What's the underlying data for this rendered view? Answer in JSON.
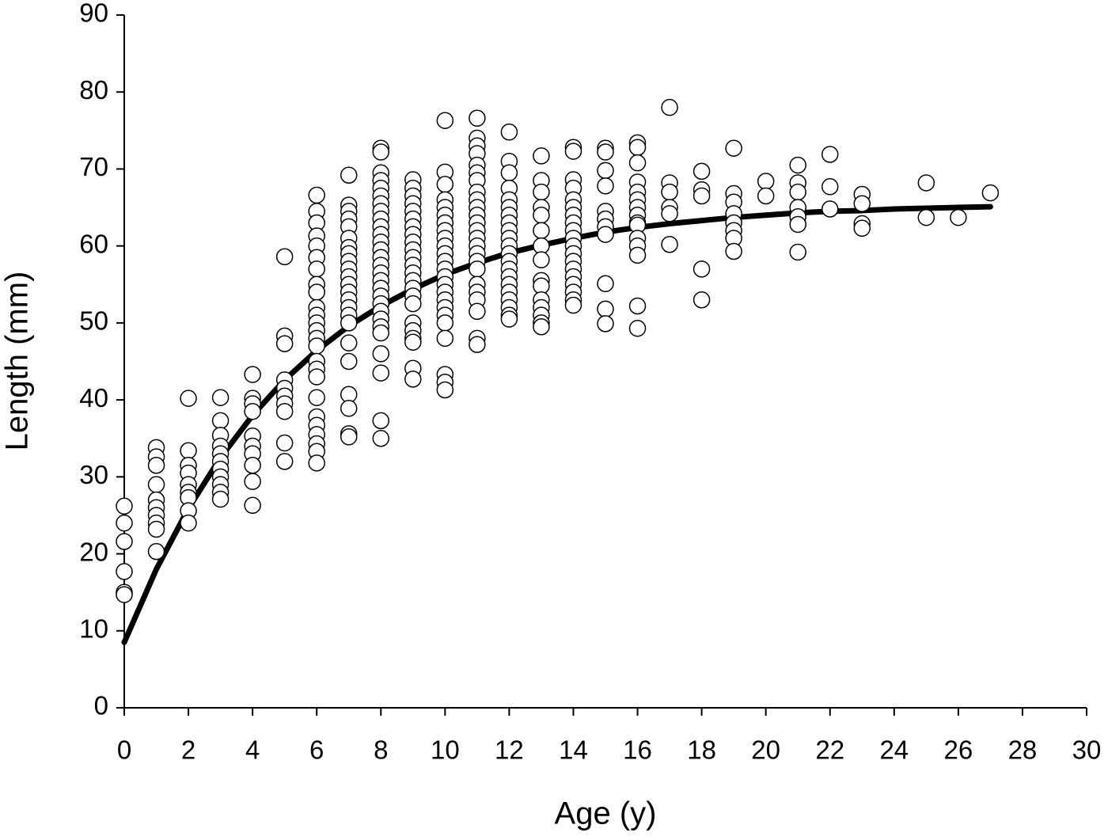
{
  "chart_data": {
    "type": "scatter",
    "x_label": "Age (y)",
    "y_label": "Length (mm)",
    "xlim": [
      0,
      30
    ],
    "ylim": [
      0,
      90
    ],
    "xticks": [
      0,
      2,
      4,
      6,
      8,
      10,
      12,
      14,
      16,
      18,
      20,
      22,
      24,
      26,
      28,
      30
    ],
    "yticks": [
      0,
      10,
      20,
      30,
      40,
      50,
      60,
      70,
      80,
      90
    ],
    "series": [
      {
        "type": "scatter",
        "color": "#ffffff",
        "x": [
          0,
          0,
          0,
          0,
          0,
          0,
          1,
          1,
          1,
          1,
          1,
          1,
          1,
          1,
          1,
          1,
          2,
          2,
          2,
          2,
          2,
          2,
          2,
          2,
          2,
          3,
          3,
          3,
          3,
          3,
          3,
          3,
          3,
          3,
          3,
          3,
          4,
          4,
          4,
          4,
          4,
          4,
          4,
          4,
          4,
          4,
          5,
          5,
          5,
          5,
          5,
          5,
          5,
          5,
          5,
          5,
          6,
          6,
          6,
          6,
          6,
          6,
          6,
          6,
          6,
          6,
          6,
          6,
          6,
          6,
          6,
          6,
          6,
          6,
          6,
          6,
          6,
          6,
          6,
          6,
          6,
          7,
          7,
          7,
          7,
          7,
          7,
          7,
          7,
          7,
          7,
          7,
          7,
          7,
          7,
          7,
          7,
          7,
          7,
          7,
          7,
          7,
          7,
          7,
          8,
          8,
          8,
          8,
          8,
          8,
          8,
          8,
          8,
          8,
          8,
          8,
          8,
          8,
          8,
          8,
          8,
          8,
          8,
          8,
          8,
          8,
          8,
          8,
          8,
          8,
          8,
          8,
          9,
          9,
          9,
          9,
          9,
          9,
          9,
          9,
          9,
          9,
          9,
          9,
          9,
          9,
          9,
          9,
          9,
          9,
          9,
          9,
          9,
          9,
          9,
          10,
          10,
          10,
          10,
          10,
          10,
          10,
          10,
          10,
          10,
          10,
          10,
          10,
          10,
          10,
          10,
          10,
          10,
          10,
          10,
          10,
          10,
          10,
          10,
          11,
          11,
          11,
          11,
          11,
          11,
          11,
          11,
          11,
          11,
          11,
          11,
          11,
          11,
          11,
          11,
          11,
          11,
          11,
          11,
          11,
          11,
          11,
          11,
          12,
          12,
          12,
          12,
          12,
          12,
          12,
          12,
          12,
          12,
          12,
          12,
          12,
          12,
          12,
          12,
          12,
          12,
          12,
          12,
          12,
          13,
          13,
          13,
          13,
          13,
          13,
          13,
          13,
          13,
          13,
          13,
          13,
          13,
          13,
          13,
          14,
          14,
          14,
          14,
          14,
          14,
          14,
          14,
          14,
          14,
          14,
          14,
          14,
          14,
          14,
          14,
          14,
          14,
          14,
          15,
          15,
          15,
          15,
          15,
          15,
          15,
          15,
          15,
          15,
          15,
          16,
          16,
          16,
          16,
          16,
          16,
          16,
          16,
          16,
          16,
          16,
          16,
          16,
          16,
          16,
          17,
          17,
          17,
          17,
          17,
          17,
          18,
          18,
          18,
          18,
          18,
          19,
          19,
          19,
          19,
          19,
          19,
          19,
          19,
          20,
          20,
          21,
          21,
          21,
          21,
          21,
          21,
          21,
          22,
          22,
          22,
          23,
          23,
          23,
          23,
          25,
          25,
          26,
          27
        ],
        "values": [
          26.2,
          24,
          21.6,
          17.7,
          15,
          14.7,
          33.8,
          32.6,
          31.5,
          29,
          27,
          26,
          25,
          24,
          23.2,
          20.3,
          40.2,
          33.4,
          31.5,
          30.5,
          29,
          28,
          27.3,
          25.6,
          24,
          40.3,
          37.3,
          35.4,
          34,
          33,
          32,
          31,
          30,
          29,
          28,
          27.1,
          43.3,
          40.2,
          39.5,
          38.5,
          35.3,
          34,
          33,
          31.5,
          29.4,
          26.3,
          58.6,
          48.3,
          47.3,
          42.6,
          41.5,
          40.5,
          39.5,
          38.5,
          34.4,
          32,
          66.6,
          64.5,
          63,
          61.3,
          60,
          58.5,
          57,
          55,
          54,
          52,
          51,
          50,
          49,
          48,
          47,
          45,
          44,
          43,
          40.3,
          37.8,
          36.7,
          35.5,
          34.3,
          33.3,
          31.8,
          69.2,
          65.3,
          64.5,
          63.5,
          62.5,
          61,
          59.8,
          59,
          58,
          57,
          56,
          55,
          54,
          53,
          52,
          51,
          50,
          47.4,
          45,
          40.7,
          38.9,
          35.6,
          35.2,
          72.7,
          72.2,
          69.5,
          68.5,
          67.5,
          66.5,
          65.5,
          64.5,
          63.5,
          62.5,
          61.5,
          60.5,
          59.5,
          58.5,
          57.5,
          56.5,
          55.5,
          54.5,
          53.5,
          52.5,
          51.5,
          50.5,
          49.5,
          48.7,
          46,
          43.5,
          37.3,
          35,
          68.6,
          67.5,
          66.5,
          65.5,
          64.5,
          63.5,
          62.5,
          61.5,
          60.5,
          59.5,
          58.5,
          57.5,
          56.5,
          55.5,
          54.5,
          53.5,
          52.5,
          50,
          49,
          48,
          47.5,
          44.1,
          42.7,
          76.3,
          69.6,
          68,
          66,
          65,
          64,
          63,
          62,
          61,
          60,
          59,
          58,
          57,
          56,
          55,
          54,
          53,
          52,
          51,
          50,
          48,
          43.3,
          42.3,
          41.3,
          76.6,
          74,
          73,
          72,
          70.5,
          69.5,
          68.5,
          67,
          66,
          65,
          64,
          63,
          62,
          61,
          60,
          59,
          58,
          57,
          55,
          54,
          53,
          51.5,
          48,
          47.2,
          74.8,
          71,
          69.5,
          67.5,
          66,
          65,
          64,
          63,
          62,
          61,
          60,
          59,
          58,
          57,
          56,
          55,
          54,
          53,
          52,
          51,
          50.5,
          71.7,
          68.5,
          67,
          65,
          64,
          62,
          60,
          58.2,
          55.5,
          54.8,
          53,
          52,
          51,
          50,
          49.5,
          72.8,
          72.3,
          68.6,
          67.5,
          66,
          65,
          64,
          63,
          62,
          61,
          60,
          59,
          58,
          57,
          56,
          55,
          54,
          53,
          52.3,
          72.7,
          72.2,
          69.8,
          67.8,
          64.5,
          63.5,
          62.5,
          61.5,
          55.1,
          51.8,
          49.9,
          73.4,
          72.8,
          70.8,
          68.3,
          67,
          66,
          65,
          64,
          63,
          62.7,
          61,
          60,
          58.8,
          52.2,
          49.3,
          78,
          68.2,
          67,
          65,
          64.2,
          60.2,
          69.7,
          67.3,
          66.5,
          57,
          53,
          72.7,
          66.8,
          65.7,
          64.2,
          63,
          62,
          61,
          59.3,
          68.4,
          66.5,
          70.5,
          68.2,
          67,
          65,
          63.8,
          62.8,
          59.2,
          71.9,
          67.7,
          64.8,
          66.7,
          65.5,
          62.9,
          62.3,
          68.2,
          63.7,
          63.7,
          66.9
        ]
      },
      {
        "type": "line",
        "color": "#000000",
        "x": [
          0,
          1,
          2,
          3,
          4,
          5,
          6,
          7,
          8,
          9,
          10,
          11,
          12,
          13,
          14,
          15,
          16,
          17,
          18,
          19,
          20,
          21,
          22,
          23,
          24,
          25,
          26,
          27
        ],
        "values": [
          8.5,
          18,
          25.9,
          32.5,
          38,
          42.6,
          46.4,
          49.6,
          52.2,
          54.4,
          56.3,
          57.8,
          59.1,
          60.1,
          61,
          61.8,
          62.4,
          62.9,
          63.3,
          63.7,
          64,
          64.3,
          64.5,
          64.6,
          64.8,
          64.9,
          65,
          65.1
        ]
      }
    ]
  }
}
